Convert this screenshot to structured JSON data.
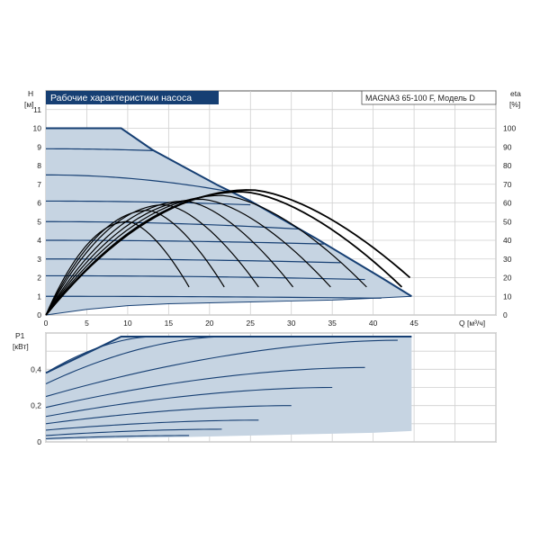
{
  "chart_data": {
    "type": "line",
    "title": "Рабочие характеристики насоса",
    "model": "MAGNA3 65-100 F, Модель D",
    "colors": {
      "curve": "#163f73",
      "fill": "#c6d4e2",
      "eta": "#000000",
      "grid": "#cfcfcf",
      "title_bg": "#163f73",
      "title_text": "#ffffff"
    },
    "head": {
      "ylabel": "H",
      "yunit": "[м]",
      "xlabel": "Q [м³/ч]",
      "xlim": [
        0,
        55
      ],
      "ylim": [
        0,
        12
      ],
      "xticks": [
        "0",
        "5",
        "10",
        "15",
        "20",
        "25",
        "30",
        "35",
        "40",
        "45"
      ],
      "yticks": [
        "0",
        "1",
        "2",
        "3",
        "4",
        "5",
        "6",
        "7",
        "8",
        "9",
        "10",
        "11"
      ],
      "max_curve": {
        "x": [
          0,
          9.2,
          13,
          17,
          21,
          25,
          29,
          33,
          37,
          41,
          44.7
        ],
        "y": [
          10,
          10,
          8.85,
          7.9,
          6.95,
          6.1,
          5.1,
          4.1,
          3.05,
          2.0,
          1.0
        ]
      },
      "min_curve": {
        "x": [
          0,
          5,
          10,
          15,
          20,
          25,
          30,
          35,
          40,
          44.7
        ],
        "y": [
          0,
          0.3,
          0.5,
          0.6,
          0.65,
          0.7,
          0.75,
          0.8,
          0.9,
          1.0
        ]
      },
      "speed_curves": [
        {
          "h0": 8.9,
          "qmax": 13.2,
          "hend": 8.8
        },
        {
          "h0": 7.5,
          "qmax": 22.5,
          "hend": 6.6
        },
        {
          "h0": 6.1,
          "qmax": 25.0,
          "hend": 5.9
        },
        {
          "h0": 5.0,
          "qmax": 31.0,
          "hend": 4.6
        },
        {
          "h0": 4.0,
          "qmax": 34.0,
          "hend": 3.8
        },
        {
          "h0": 3.0,
          "qmax": 36.0,
          "hend": 2.8
        },
        {
          "h0": 2.1,
          "qmax": 39.0,
          "hend": 1.9
        },
        {
          "h0": 1.0,
          "qmax": 41.0,
          "hend": 0.9
        }
      ]
    },
    "eta": {
      "ylabel": "eta",
      "yunit": "[%]",
      "ylim": [
        0,
        120
      ],
      "yticks": [
        "0",
        "10",
        "20",
        "30",
        "40",
        "50",
        "60",
        "70",
        "80",
        "90",
        "100"
      ],
      "curves": [
        {
          "qmax": 17.5,
          "peak": 50,
          "qpeak": 10.0
        },
        {
          "qmax": 21.8,
          "peak": 56,
          "qpeak": 12.5
        },
        {
          "qmax": 26.0,
          "peak": 59,
          "qpeak": 14.5
        },
        {
          "qmax": 30.2,
          "peak": 61,
          "qpeak": 17.0
        },
        {
          "qmax": 34.8,
          "peak": 62,
          "qpeak": 19.0
        },
        {
          "qmax": 39.2,
          "peak": 64,
          "qpeak": 21.5
        },
        {
          "qmax": 43.5,
          "peak": 66,
          "qpeak": 24.0
        },
        {
          "qmax": 44.5,
          "peak": 67,
          "qpeak": 25.0
        }
      ]
    },
    "power": {
      "ylabel": "P1",
      "yunit": "[кВт]",
      "ylim": [
        0,
        0.6
      ],
      "yticks": [
        "0",
        "0,2",
        "0,4"
      ],
      "max_curve": {
        "x": [
          0,
          3,
          6,
          9.2,
          20,
          30,
          40,
          44.7
        ],
        "y": [
          0.38,
          0.445,
          0.51,
          0.58,
          0.58,
          0.58,
          0.58,
          0.58
        ]
      },
      "min_curve": {
        "x": [
          0,
          10,
          20,
          30,
          40,
          44.7
        ],
        "y": [
          0.01,
          0.02,
          0.03,
          0.04,
          0.05,
          0.06
        ]
      },
      "speed_curves": [
        {
          "p0": 0.38,
          "qmax": 13.2,
          "pend": 0.58
        },
        {
          "p0": 0.32,
          "qmax": 22.0,
          "pend": 0.58
        },
        {
          "p0": 0.25,
          "qmax": 43.0,
          "pend": 0.56
        },
        {
          "p0": 0.19,
          "qmax": 39.0,
          "pend": 0.41
        },
        {
          "p0": 0.14,
          "qmax": 35.0,
          "pend": 0.3
        },
        {
          "p0": 0.1,
          "qmax": 30.0,
          "pend": 0.2
        },
        {
          "p0": 0.065,
          "qmax": 26.0,
          "pend": 0.12
        },
        {
          "p0": 0.035,
          "qmax": 21.5,
          "pend": 0.07
        },
        {
          "p0": 0.018,
          "qmax": 17.5,
          "pend": 0.035
        }
      ]
    }
  }
}
